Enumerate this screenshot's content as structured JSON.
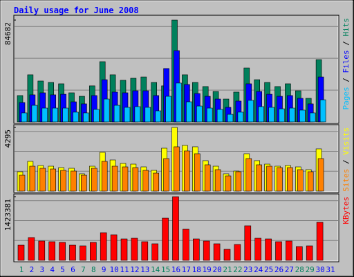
{
  "chart_data": [
    {
      "type": "bar",
      "title": "Daily usage for June 2008",
      "series": [
        {
          "name": "Hits",
          "color": "#00805c",
          "values": [
            21900,
            39200,
            34000,
            32800,
            31700,
            24200,
            21300,
            30000,
            50100,
            39200,
            34600,
            36300,
            37400,
            32800,
            30000,
            84682,
            39200,
            32800,
            29400,
            25300,
            19000,
            24800,
            44900,
            35100,
            32800,
            29400,
            31700,
            25900,
            19600,
            51800,
            0
          ]
        },
        {
          "name": "Files",
          "color": "#0000ff",
          "values": [
            16100,
            22500,
            24200,
            22500,
            23000,
            16700,
            15000,
            21900,
            35100,
            24800,
            24200,
            25900,
            25900,
            21900,
            44400,
            59300,
            31100,
            23600,
            21300,
            19000,
            12100,
            17300,
            31700,
            25300,
            23000,
            21300,
            21900,
            19600,
            15000,
            37400,
            0
          ]
        },
        {
          "name": "Pages",
          "color": "#00c0ff",
          "values": [
            7500,
            13800,
            11500,
            11500,
            11500,
            8100,
            7500,
            10400,
            19000,
            13800,
            12100,
            12700,
            12100,
            9200,
            21300,
            32300,
            16700,
            13200,
            11500,
            10400,
            6300,
            8100,
            17900,
            12700,
            12100,
            10900,
            11500,
            9800,
            7500,
            18400,
            0
          ]
        }
      ],
      "ylim": [
        0,
        84682
      ],
      "yticks": [
        84682
      ],
      "legend_separator": " / "
    },
    {
      "type": "bar",
      "series": [
        {
          "name": "Visits",
          "color": "#ffff00",
          "values": [
            1307,
            2008,
            1728,
            1681,
            1588,
            1541,
            1168,
            1681,
            2615,
            2101,
            1868,
            1821,
            1634,
            1401,
            2895,
            4295,
            3082,
            2989,
            2055,
            1681,
            1168,
            1354,
            2522,
            2055,
            1821,
            1681,
            1728,
            1634,
            1448,
            2849,
            0
          ]
        },
        {
          "name": "Sites",
          "color": "#ff8000",
          "values": [
            1074,
            1681,
            1541,
            1494,
            1401,
            1354,
            1074,
            1541,
            2008,
            1681,
            1634,
            1588,
            1401,
            1214,
            2195,
            2989,
            2709,
            2522,
            1775,
            1448,
            1027,
            1308,
            2195,
            1775,
            1681,
            1588,
            1588,
            1448,
            1308,
            2195,
            0
          ]
        }
      ],
      "ylim": [
        0,
        4295
      ],
      "yticks": [
        4295
      ],
      "legend_separator": " / "
    },
    {
      "type": "bar",
      "series": [
        {
          "name": "KBytes",
          "color": "#ff0000",
          "values": [
            340400,
            510500,
            433200,
            417700,
            402200,
            340400,
            324900,
            402200,
            618800,
            572400,
            479600,
            495100,
            417700,
            371300,
            943700,
            1423381,
            696200,
            479600,
            433200,
            371300,
            247500,
            355800,
            773600,
            495100,
            479600,
            417700,
            433200,
            309400,
            324900,
            850900,
            0
          ]
        }
      ],
      "ylim": [
        0,
        1423381
      ],
      "yticks": [
        1423381
      ],
      "categories": [
        "1",
        "2",
        "3",
        "4",
        "5",
        "6",
        "7",
        "8",
        "9",
        "10",
        "11",
        "12",
        "13",
        "14",
        "15",
        "16",
        "17",
        "18",
        "19",
        "20",
        "21",
        "22",
        "23",
        "24",
        "25",
        "26",
        "27",
        "28",
        "29",
        "30",
        "31"
      ],
      "category_colors": [
        "#00805c",
        "#0000ff",
        "#0000ff",
        "#0000ff",
        "#0000ff",
        "#0000ff",
        "#00805c",
        "#00805c",
        "#0000ff",
        "#0000ff",
        "#0000ff",
        "#0000ff",
        "#0000ff",
        "#00805c",
        "#00805c",
        "#0000ff",
        "#0000ff",
        "#0000ff",
        "#0000ff",
        "#0000ff",
        "#00805c",
        "#00805c",
        "#0000ff",
        "#0000ff",
        "#0000ff",
        "#0000ff",
        "#0000ff",
        "#00805c",
        "#00805c",
        "#0000ff",
        "#0000ff"
      ]
    }
  ]
}
